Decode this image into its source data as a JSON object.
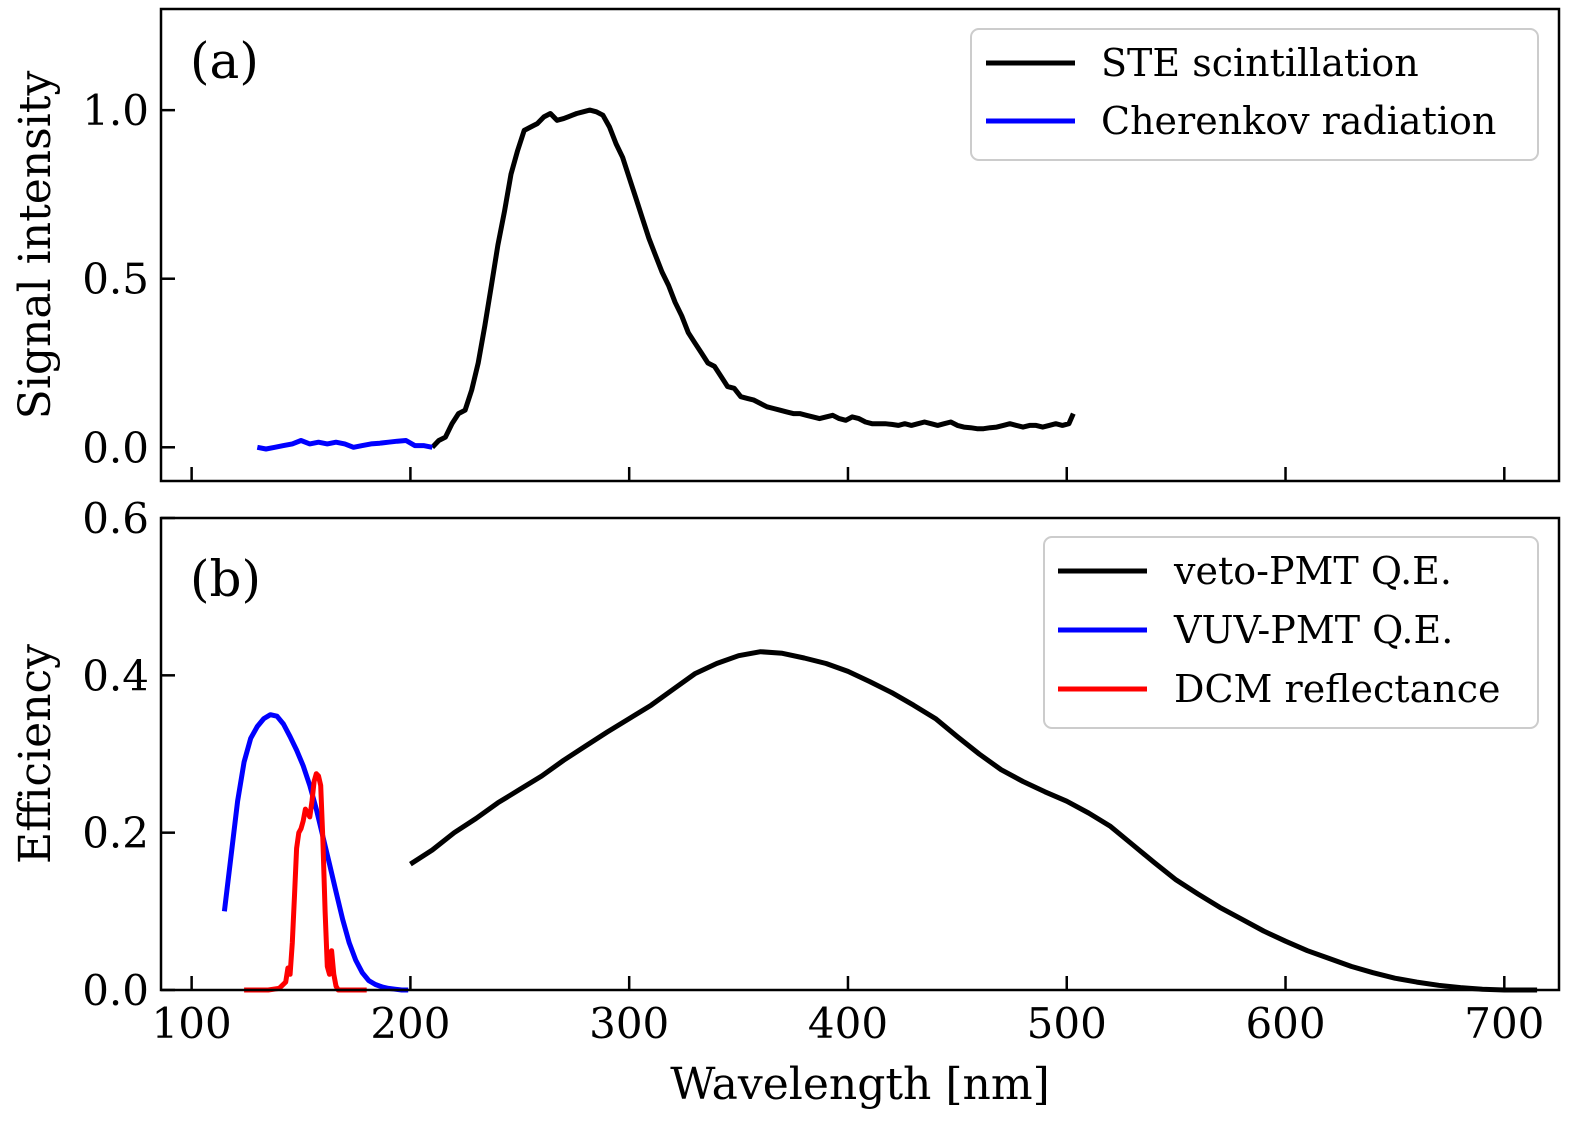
{
  "chart_data": [
    {
      "type": "line",
      "panel_label": "(a)",
      "ylabel": "Signal intensity",
      "xlabel": "",
      "xlim": [
        86,
        725
      ],
      "ylim": [
        -0.1,
        1.3
      ],
      "x_ticks": [
        100,
        200,
        300,
        400,
        500,
        600,
        700
      ],
      "x_tick_labels_shown": false,
      "y_ticks": [
        0.0,
        0.5,
        1.0
      ],
      "y_tick_labels": [
        "0.0",
        "0.5",
        "1.0"
      ],
      "legend_position": "top-right",
      "series": [
        {
          "name": "STE scintillation",
          "color": "#000000",
          "x": [
            210,
            213,
            216,
            219,
            222,
            225,
            228,
            231,
            234,
            237,
            240,
            243,
            246,
            249,
            252,
            255,
            258,
            261,
            264,
            267,
            270,
            272,
            274,
            276,
            279,
            282,
            285,
            288,
            291,
            294,
            297,
            300,
            303,
            306,
            309,
            312,
            315,
            318,
            321,
            324,
            327,
            330,
            333,
            336,
            339,
            342,
            345,
            348,
            351,
            354,
            357,
            360,
            363,
            366,
            369,
            372,
            375,
            378,
            381,
            384,
            387,
            390,
            393,
            396,
            399,
            402,
            405,
            408,
            411,
            414,
            417,
            420,
            423,
            426,
            429,
            432,
            435,
            438,
            441,
            444,
            447,
            450,
            453,
            456,
            459,
            462,
            465,
            468,
            471,
            474,
            477,
            480,
            483,
            486,
            489,
            492,
            495,
            498,
            501,
            503
          ],
          "y": [
            0.0,
            0.02,
            0.03,
            0.07,
            0.1,
            0.11,
            0.17,
            0.25,
            0.36,
            0.48,
            0.6,
            0.7,
            0.81,
            0.88,
            0.94,
            0.95,
            0.96,
            0.98,
            0.99,
            0.97,
            0.975,
            0.98,
            0.985,
            0.99,
            0.995,
            1.0,
            0.995,
            0.985,
            0.95,
            0.9,
            0.86,
            0.8,
            0.74,
            0.68,
            0.62,
            0.57,
            0.52,
            0.48,
            0.43,
            0.39,
            0.34,
            0.31,
            0.28,
            0.25,
            0.24,
            0.21,
            0.18,
            0.175,
            0.15,
            0.145,
            0.14,
            0.13,
            0.12,
            0.115,
            0.11,
            0.105,
            0.1,
            0.1,
            0.095,
            0.09,
            0.085,
            0.09,
            0.095,
            0.085,
            0.08,
            0.09,
            0.085,
            0.075,
            0.07,
            0.07,
            0.07,
            0.068,
            0.065,
            0.07,
            0.065,
            0.07,
            0.075,
            0.07,
            0.065,
            0.07,
            0.075,
            0.065,
            0.06,
            0.058,
            0.055,
            0.055,
            0.058,
            0.06,
            0.065,
            0.07,
            0.065,
            0.06,
            0.065,
            0.065,
            0.06,
            0.065,
            0.07,
            0.065,
            0.07,
            0.1
          ]
        },
        {
          "name": "Cherenkov radiation",
          "color": "#0000ff",
          "x": [
            130,
            134,
            138,
            142,
            146,
            150,
            154,
            158,
            162,
            166,
            170,
            174,
            178,
            182,
            186,
            190,
            194,
            198,
            202,
            206,
            210
          ],
          "y": [
            0.0,
            -0.005,
            0.0,
            0.005,
            0.01,
            0.02,
            0.01,
            0.015,
            0.01,
            0.015,
            0.01,
            0.0,
            0.005,
            0.01,
            0.012,
            0.015,
            0.018,
            0.02,
            0.005,
            0.005,
            0.0
          ]
        }
      ]
    },
    {
      "type": "line",
      "panel_label": "(b)",
      "ylabel": "Efficiency",
      "xlabel": "Wavelength [nm]",
      "xlim": [
        86,
        725
      ],
      "ylim": [
        0.0,
        0.6
      ],
      "x_ticks": [
        100,
        200,
        300,
        400,
        500,
        600,
        700
      ],
      "x_tick_labels": [
        "100",
        "200",
        "300",
        "400",
        "500",
        "600",
        "700"
      ],
      "y_ticks": [
        0.0,
        0.2,
        0.4,
        0.6
      ],
      "y_tick_labels": [
        "0.0",
        "0.2",
        "0.4",
        "0.6"
      ],
      "legend_position": "top-right",
      "series": [
        {
          "name": "veto-PMT Q.E.",
          "color": "#000000",
          "x": [
            200,
            210,
            220,
            230,
            240,
            250,
            260,
            270,
            280,
            290,
            300,
            310,
            320,
            330,
            340,
            350,
            360,
            370,
            380,
            390,
            400,
            410,
            420,
            430,
            440,
            450,
            460,
            470,
            480,
            490,
            500,
            510,
            520,
            530,
            540,
            550,
            560,
            570,
            580,
            590,
            600,
            610,
            620,
            630,
            640,
            650,
            660,
            670,
            680,
            690,
            700,
            710,
            715
          ],
          "y": [
            0.16,
            0.178,
            0.2,
            0.218,
            0.238,
            0.255,
            0.272,
            0.292,
            0.31,
            0.328,
            0.345,
            0.362,
            0.382,
            0.402,
            0.415,
            0.425,
            0.43,
            0.428,
            0.422,
            0.415,
            0.405,
            0.392,
            0.378,
            0.362,
            0.345,
            0.322,
            0.3,
            0.28,
            0.265,
            0.252,
            0.24,
            0.225,
            0.208,
            0.185,
            0.162,
            0.14,
            0.122,
            0.105,
            0.09,
            0.075,
            0.062,
            0.05,
            0.04,
            0.03,
            0.022,
            0.015,
            0.01,
            0.006,
            0.003,
            0.001,
            0.0,
            0.0,
            0.0
          ]
        },
        {
          "name": "VUV-PMT Q.E.",
          "color": "#0000ff",
          "x": [
            115,
            118,
            121,
            124,
            127,
            130,
            133,
            136,
            139,
            142,
            145,
            148,
            151,
            154,
            157,
            160,
            163,
            166,
            169,
            172,
            175,
            178,
            181,
            184,
            187,
            190,
            193,
            196,
            199
          ],
          "y": [
            0.1,
            0.17,
            0.24,
            0.29,
            0.32,
            0.335,
            0.345,
            0.35,
            0.348,
            0.338,
            0.322,
            0.305,
            0.285,
            0.26,
            0.23,
            0.195,
            0.16,
            0.125,
            0.09,
            0.06,
            0.038,
            0.022,
            0.012,
            0.007,
            0.004,
            0.002,
            0.001,
            0.0,
            0.0
          ]
        },
        {
          "name": "DCM reflectance",
          "color": "#ff0000",
          "x": [
            124,
            130,
            135,
            140,
            143,
            144,
            145,
            146,
            147,
            148,
            149,
            150,
            151,
            152,
            153,
            154,
            155,
            156,
            157,
            158,
            159,
            160,
            161,
            162,
            163,
            164,
            165,
            166,
            167,
            170,
            175,
            180
          ],
          "y": [
            0.0,
            0.0,
            0.0,
            0.002,
            0.01,
            0.028,
            0.02,
            0.06,
            0.12,
            0.18,
            0.2,
            0.205,
            0.215,
            0.23,
            0.225,
            0.22,
            0.24,
            0.265,
            0.275,
            0.272,
            0.26,
            0.19,
            0.1,
            0.03,
            0.02,
            0.05,
            0.02,
            0.005,
            0.0,
            0.0,
            0.0,
            0.0
          ]
        }
      ]
    }
  ]
}
